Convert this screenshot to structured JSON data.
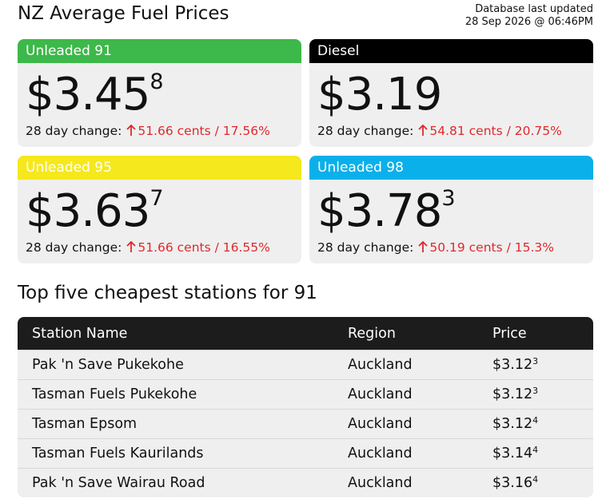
{
  "header": {
    "title": "NZ Average Fuel Prices",
    "updated_label": "Database last updated",
    "updated_time": "28 Sep 2026 @ 06:46PM"
  },
  "cards": [
    {
      "name": "Unleaded 91",
      "color": "#3db84a",
      "price": "$3.45",
      "price_fraction": "8",
      "change_label": "28 day change:",
      "change": "51.66 cents / 17.56%"
    },
    {
      "name": "Diesel",
      "color": "#000000",
      "price": "$3.19",
      "price_fraction": null,
      "change_label": "28 day change:",
      "change": "54.81 cents / 20.75%"
    },
    {
      "name": "Unleaded 95",
      "color": "#f5e81c",
      "price": "$3.63",
      "price_fraction": "7",
      "change_label": "28 day change:",
      "change": "51.66 cents / 16.55%"
    },
    {
      "name": "Unleaded 98",
      "color": "#0ab0ea",
      "price": "$3.78",
      "price_fraction": "3",
      "change_label": "28 day change:",
      "change": "50.19 cents / 15.3%"
    }
  ],
  "table": {
    "title": "Top five cheapest stations for 91",
    "columns": [
      "Station Name",
      "Region",
      "Price"
    ],
    "rows": [
      {
        "station": "Pak 'n Save Pukekohe",
        "region": "Auckland",
        "price": "$3.12",
        "price_fraction": "3"
      },
      {
        "station": "Tasman Fuels Pukekohe",
        "region": "Auckland",
        "price": "$3.12",
        "price_fraction": "3"
      },
      {
        "station": "Tasman Epsom",
        "region": "Auckland",
        "price": "$3.12",
        "price_fraction": "4"
      },
      {
        "station": "Tasman Fuels Kaurilands",
        "region": "Auckland",
        "price": "$3.14",
        "price_fraction": "4"
      },
      {
        "station": "Pak 'n Save Wairau Road",
        "region": "Auckland",
        "price": "$3.16",
        "price_fraction": "4"
      }
    ]
  }
}
